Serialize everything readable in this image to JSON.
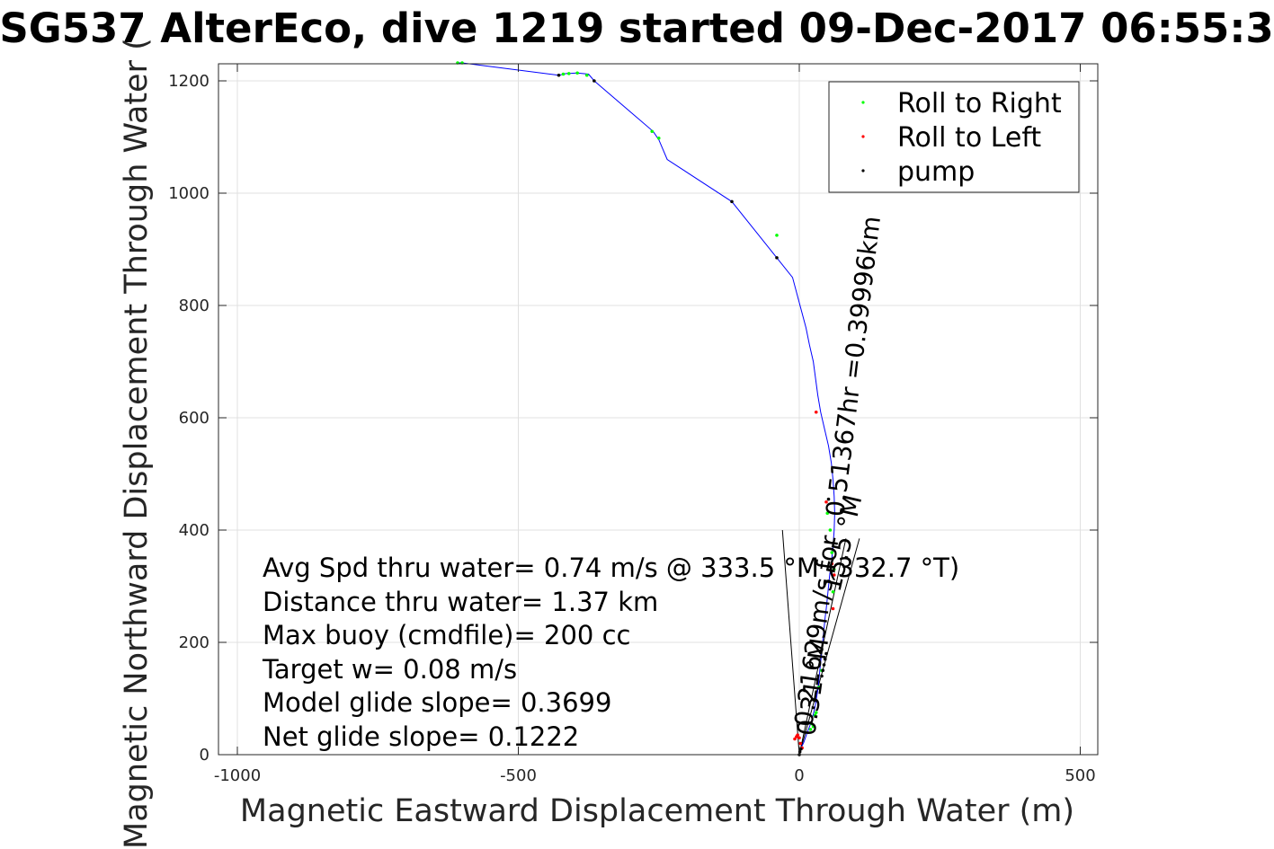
{
  "chart_data": {
    "type": "line",
    "title": "SG537 AlterEco, dive 1219 started 09-Dec-2017 06:55:3",
    "xlabel": "Magnetic Eastward Displacement Through Water (m)",
    "ylabel": "Magnetic Northward Displacement Through Water (",
    "xlim": [
      -1040,
      530
    ],
    "ylim": [
      0,
      1230
    ],
    "xticks": [
      -1000,
      -500,
      0,
      500
    ],
    "xtick_labels": [
      "-1000",
      "-500",
      "0",
      "500"
    ],
    "yticks": [
      0,
      200,
      400,
      600,
      800,
      1000,
      1200
    ],
    "ytick_labels": [
      "0",
      "200",
      "400",
      "600",
      "800",
      "1000",
      "1200"
    ],
    "grid": true,
    "legend_position": "top-right",
    "series": [
      {
        "color": "#0000ff",
        "x": [
          0,
          2,
          8,
          15,
          22,
          28,
          33,
          36,
          38,
          40,
          43,
          46,
          48,
          51,
          54,
          57,
          60,
          62,
          63,
          62,
          60,
          57,
          52,
          45,
          38,
          33,
          29,
          25,
          18,
          12,
          4,
          -4,
          -12,
          -40,
          -120,
          -235,
          -250,
          -260,
          -365,
          -375,
          -395,
          -415,
          -428,
          -600,
          -608
        ],
        "y": [
          0,
          10,
          22,
          42,
          60,
          85,
          115,
          145,
          165,
          185,
          215,
          245,
          260,
          290,
          320,
          340,
          370,
          400,
          430,
          460,
          490,
          520,
          550,
          580,
          610,
          640,
          670,
          700,
          730,
          760,
          790,
          820,
          850,
          885,
          985,
          1060,
          1095,
          1110,
          1200,
          1212,
          1214,
          1213,
          1210,
          1232,
          1232
        ]
      }
    ],
    "legend_series": [
      {
        "name": "Roll to Right",
        "color": "#00ff00"
      },
      {
        "name": "Roll to Left",
        "color": "#ff0000"
      },
      {
        "name": "pump",
        "color": "#000000"
      }
    ],
    "roll_right_points": {
      "x": [
        30,
        28,
        22,
        25,
        20,
        35,
        40,
        60,
        62,
        58,
        55,
        50,
        -40,
        -250,
        -262,
        -378,
        -395,
        -410,
        -420,
        -600,
        -608
      ],
      "y": [
        75,
        70,
        55,
        50,
        45,
        120,
        150,
        290,
        330,
        360,
        400,
        430,
        925,
        1098,
        1110,
        1210,
        1214,
        1213,
        1212,
        1232,
        1232
      ]
    },
    "roll_left_points": {
      "x": [
        -8,
        -5,
        -3,
        0,
        2,
        5,
        60,
        62,
        58,
        48,
        30
      ],
      "y": [
        28,
        32,
        35,
        30,
        20,
        12,
        260,
        320,
        340,
        450,
        610
      ]
    },
    "pump_points": {
      "x": [
        0,
        1,
        3,
        40,
        42,
        44,
        46,
        48,
        52,
        -120,
        -40,
        -428,
        -365
      ],
      "y": [
        0,
        5,
        10,
        140,
        150,
        160,
        170,
        180,
        455,
        985,
        885,
        1210,
        1200
      ]
    },
    "reference_lines": [
      {
        "x": [
          0,
          -30
        ],
        "y": [
          0,
          400
        ]
      },
      {
        "x": [
          0,
          107
        ],
        "y": [
          0,
          385
        ]
      },
      {
        "x": [
          0,
          83
        ],
        "y": [
          0,
          385
        ]
      }
    ],
    "annotations": [
      "Avg Spd thru water=  0.74 m/s @ 333.5 °M (332.7 °T)",
      "Distance thru water=  1.37 km",
      "Max buoy (cmdfile)= 200 cc",
      "Target w= 0.08 m/s",
      "Model glide slope= 0.3699",
      "Net glide slope= 0.1222"
    ],
    "rotated_annotations": [
      "0.51367hr =0.39996km",
      "0.21629m/s for",
      "15.5 °M",
      "0.31 °M"
    ]
  }
}
